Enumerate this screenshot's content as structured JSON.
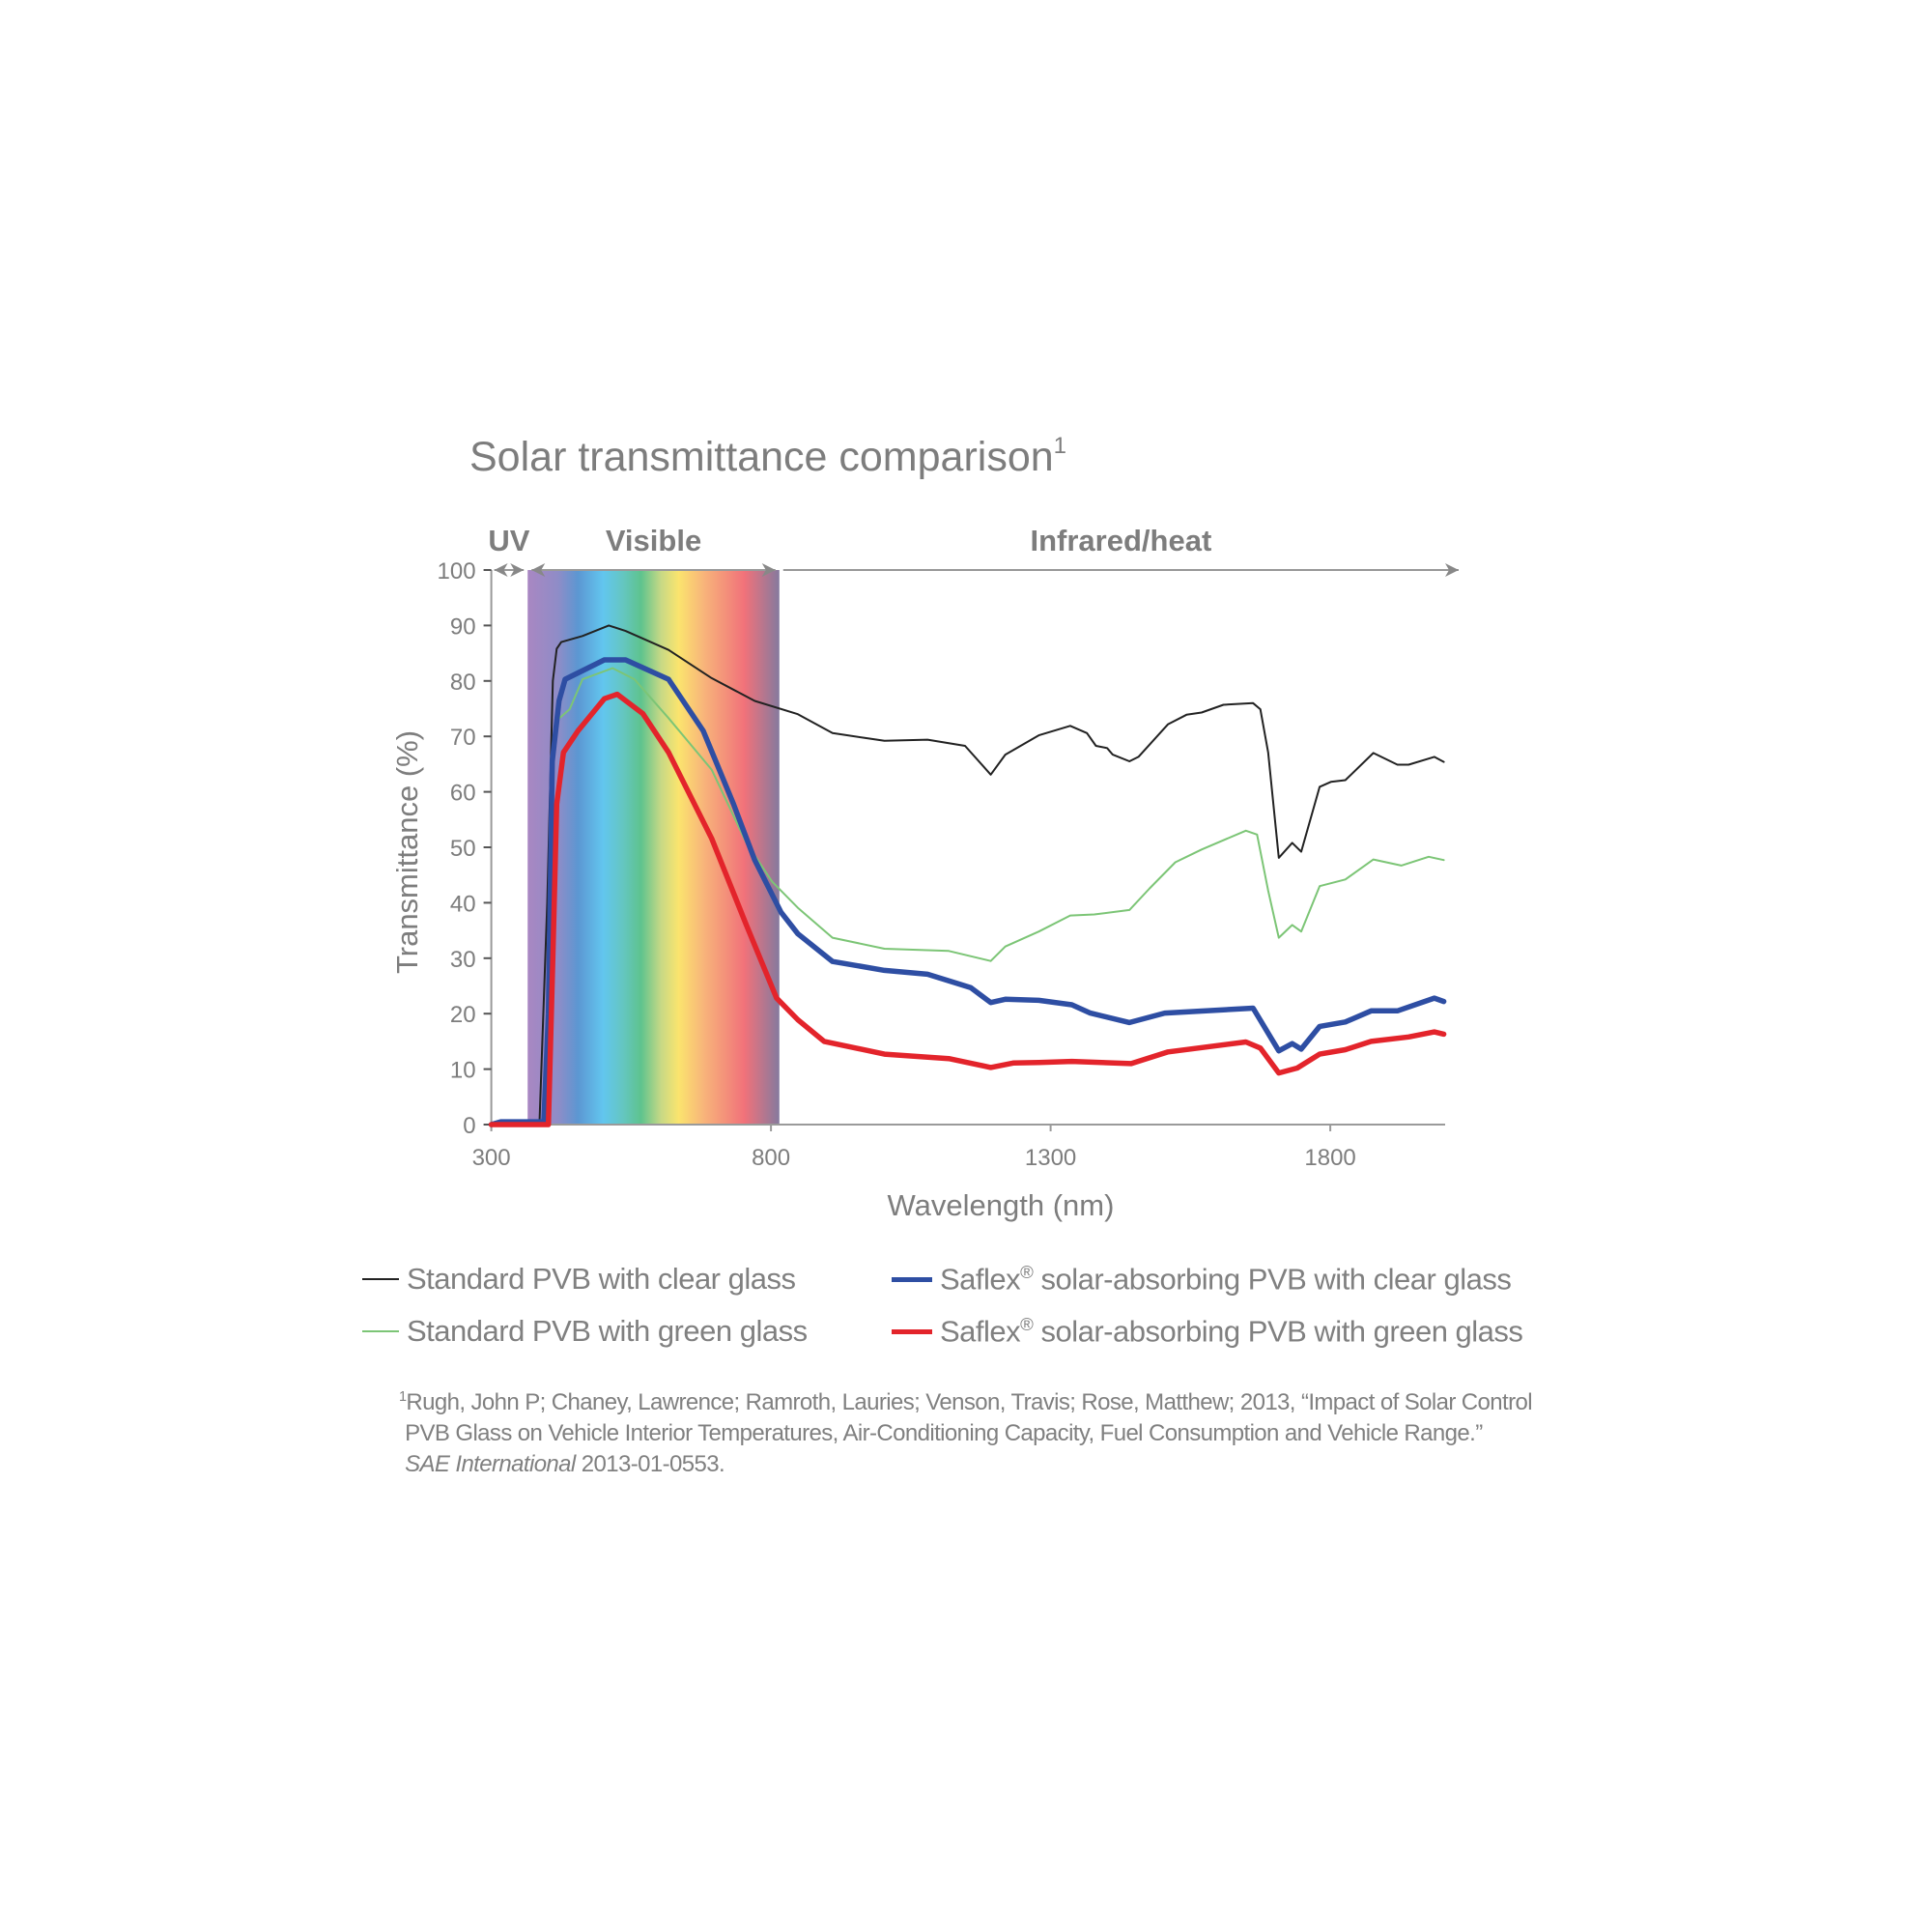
{
  "chart_data": {
    "type": "line",
    "title": "Solar transmittance comparison",
    "title_footnote_mark": "1",
    "xlabel": "Wavelength (nm)",
    "ylabel": "Transmittance (%)",
    "xlim": [
      300,
      2000
    ],
    "ylim": [
      0,
      100
    ],
    "xticks": [
      "300",
      "800",
      "1300",
      "1800"
    ],
    "yticks": [
      "0",
      "10",
      "20",
      "30",
      "40",
      "50",
      "60",
      "70",
      "80",
      "90",
      "100"
    ],
    "grid": false,
    "regions": [
      {
        "label": "UV",
        "range": [
          300,
          365
        ]
      },
      {
        "label": "Visible",
        "range": [
          365,
          815
        ]
      },
      {
        "label": "Infrared/heat",
        "range": [
          815,
          2000
        ]
      }
    ],
    "series": [
      {
        "name": "Standard PVB with clear glass",
        "color": "#222222",
        "width": "thin",
        "points": [
          [
            300,
            0
          ],
          [
            386,
            0
          ],
          [
            400,
            40
          ],
          [
            410,
            80
          ],
          [
            417,
            85.8
          ],
          [
            425,
            87
          ],
          [
            463,
            88.1
          ],
          [
            510,
            90
          ],
          [
            540,
            89
          ],
          [
            617,
            85.6
          ],
          [
            694,
            80.5
          ],
          [
            771,
            76.4
          ],
          [
            848,
            74
          ],
          [
            910,
            70.6
          ],
          [
            1003,
            69.2
          ],
          [
            1080,
            69.4
          ],
          [
            1147,
            68.3
          ],
          [
            1193,
            63.1
          ],
          [
            1219,
            66.7
          ],
          [
            1279,
            70.2
          ],
          [
            1335,
            71.9
          ],
          [
            1365,
            70.6
          ],
          [
            1381,
            68.3
          ],
          [
            1401,
            67.9
          ],
          [
            1411,
            66.7
          ],
          [
            1441,
            65.5
          ],
          [
            1457,
            66.3
          ],
          [
            1510,
            72.2
          ],
          [
            1543,
            73.9
          ],
          [
            1570,
            74.3
          ],
          [
            1609,
            75.7
          ],
          [
            1662,
            76
          ],
          [
            1675,
            74.9
          ],
          [
            1689,
            67.1
          ],
          [
            1708,
            48.1
          ],
          [
            1732,
            50.8
          ],
          [
            1748,
            49.2
          ],
          [
            1781,
            60.9
          ],
          [
            1801,
            61.8
          ],
          [
            1827,
            62.1
          ],
          [
            1877,
            67
          ],
          [
            1920,
            64.9
          ],
          [
            1940,
            64.9
          ],
          [
            1986,
            66.3
          ],
          [
            2003,
            65.4
          ]
        ]
      },
      {
        "name": "Standard PVB with green glass",
        "color": "#7cc576",
        "width": "thin",
        "points": [
          [
            422,
            73.3
          ],
          [
            440,
            74.9
          ],
          [
            463,
            80.3
          ],
          [
            517,
            82.3
          ],
          [
            556,
            80.3
          ],
          [
            617,
            73.3
          ],
          [
            694,
            64
          ],
          [
            756,
            50.8
          ],
          [
            802,
            43.8
          ],
          [
            848,
            39.1
          ],
          [
            910,
            33.7
          ],
          [
            1003,
            31.7
          ],
          [
            1118,
            31.3
          ],
          [
            1193,
            29.5
          ],
          [
            1219,
            32.1
          ],
          [
            1279,
            34.8
          ],
          [
            1335,
            37.7
          ],
          [
            1378,
            37.9
          ],
          [
            1441,
            38.7
          ],
          [
            1477,
            42.6
          ],
          [
            1523,
            47.3
          ],
          [
            1570,
            49.6
          ],
          [
            1649,
            53
          ],
          [
            1669,
            52.3
          ],
          [
            1689,
            42.2
          ],
          [
            1708,
            33.7
          ],
          [
            1732,
            36
          ],
          [
            1748,
            34.8
          ],
          [
            1781,
            43
          ],
          [
            1827,
            44.2
          ],
          [
            1877,
            47.8
          ],
          [
            1927,
            46.7
          ],
          [
            1976,
            48.3
          ],
          [
            2003,
            47.7
          ]
        ]
      },
      {
        "name": "Saflex® solar-absorbing PVB with clear glass",
        "color": "#2e4ea3",
        "width": "thick",
        "points": [
          [
            300,
            0
          ],
          [
            317,
            0.5
          ],
          [
            394,
            0.5
          ],
          [
            402,
            20
          ],
          [
            409,
            65.5
          ],
          [
            421,
            76.4
          ],
          [
            432,
            80.3
          ],
          [
            502,
            83.8
          ],
          [
            540,
            83.8
          ],
          [
            617,
            80.3
          ],
          [
            679,
            71
          ],
          [
            733,
            57.8
          ],
          [
            771,
            47.7
          ],
          [
            818,
            38.3
          ],
          [
            848,
            34.4
          ],
          [
            910,
            29.4
          ],
          [
            1003,
            27.8
          ],
          [
            1080,
            27.1
          ],
          [
            1157,
            24.7
          ],
          [
            1193,
            22
          ],
          [
            1219,
            22.6
          ],
          [
            1279,
            22.4
          ],
          [
            1338,
            21.6
          ],
          [
            1371,
            20.1
          ],
          [
            1441,
            18.4
          ],
          [
            1504,
            20.1
          ],
          [
            1662,
            21
          ],
          [
            1708,
            13.3
          ],
          [
            1732,
            14.6
          ],
          [
            1748,
            13.6
          ],
          [
            1781,
            17.7
          ],
          [
            1827,
            18.5
          ],
          [
            1873,
            20.5
          ],
          [
            1920,
            20.5
          ],
          [
            1986,
            22.8
          ],
          [
            2003,
            22.2
          ]
        ]
      },
      {
        "name": "Saflex® solar-absorbing PVB with green glass",
        "color": "#e3242b",
        "width": "thick",
        "points": [
          [
            300,
            0
          ],
          [
            402,
            0
          ],
          [
            410,
            30
          ],
          [
            417,
            57.8
          ],
          [
            429,
            67.1
          ],
          [
            455,
            71
          ],
          [
            502,
            76.8
          ],
          [
            525,
            77.6
          ],
          [
            571,
            74.1
          ],
          [
            617,
            67.1
          ],
          [
            694,
            51.6
          ],
          [
            756,
            36
          ],
          [
            810,
            22.8
          ],
          [
            848,
            18.9
          ],
          [
            895,
            15
          ],
          [
            1003,
            12.7
          ],
          [
            1118,
            11.9
          ],
          [
            1193,
            10.3
          ],
          [
            1233,
            11.1
          ],
          [
            1279,
            11.2
          ],
          [
            1338,
            11.4
          ],
          [
            1444,
            11
          ],
          [
            1510,
            13.1
          ],
          [
            1649,
            14.9
          ],
          [
            1675,
            13.8
          ],
          [
            1708,
            9.3
          ],
          [
            1741,
            10.2
          ],
          [
            1781,
            12.7
          ],
          [
            1827,
            13.5
          ],
          [
            1873,
            15
          ],
          [
            1940,
            15.8
          ],
          [
            1986,
            16.7
          ],
          [
            2003,
            16.3
          ]
        ]
      }
    ]
  },
  "legend": [
    {
      "label": "Standard PVB with clear glass",
      "color": "#222222"
    },
    {
      "label": "Standard PVB with green glass",
      "color": "#7cc576"
    },
    {
      "label_prefix": "Saflex",
      "mark": "®",
      "label_suffix": " solar-absorbing PVB with clear glass",
      "color": "#2e4ea3"
    },
    {
      "label_prefix": "Saflex",
      "mark": "®",
      "label_suffix": " solar-absorbing PVB with green glass",
      "color": "#e3242b"
    }
  ],
  "footnote": {
    "mark": "1",
    "line1": "Rugh, John P; Chaney, Lawrence; Ramroth, Lauries; Venson, Travis; Rose, Matthew; 2013, “Impact of Solar Control",
    "line2": "PVB Glass on Vehicle Interior Temperatures, Air-Conditioning Capacity, Fuel Consumption and Vehicle Range.”",
    "journal": "SAE International",
    "id": " 2013-01-0553."
  }
}
